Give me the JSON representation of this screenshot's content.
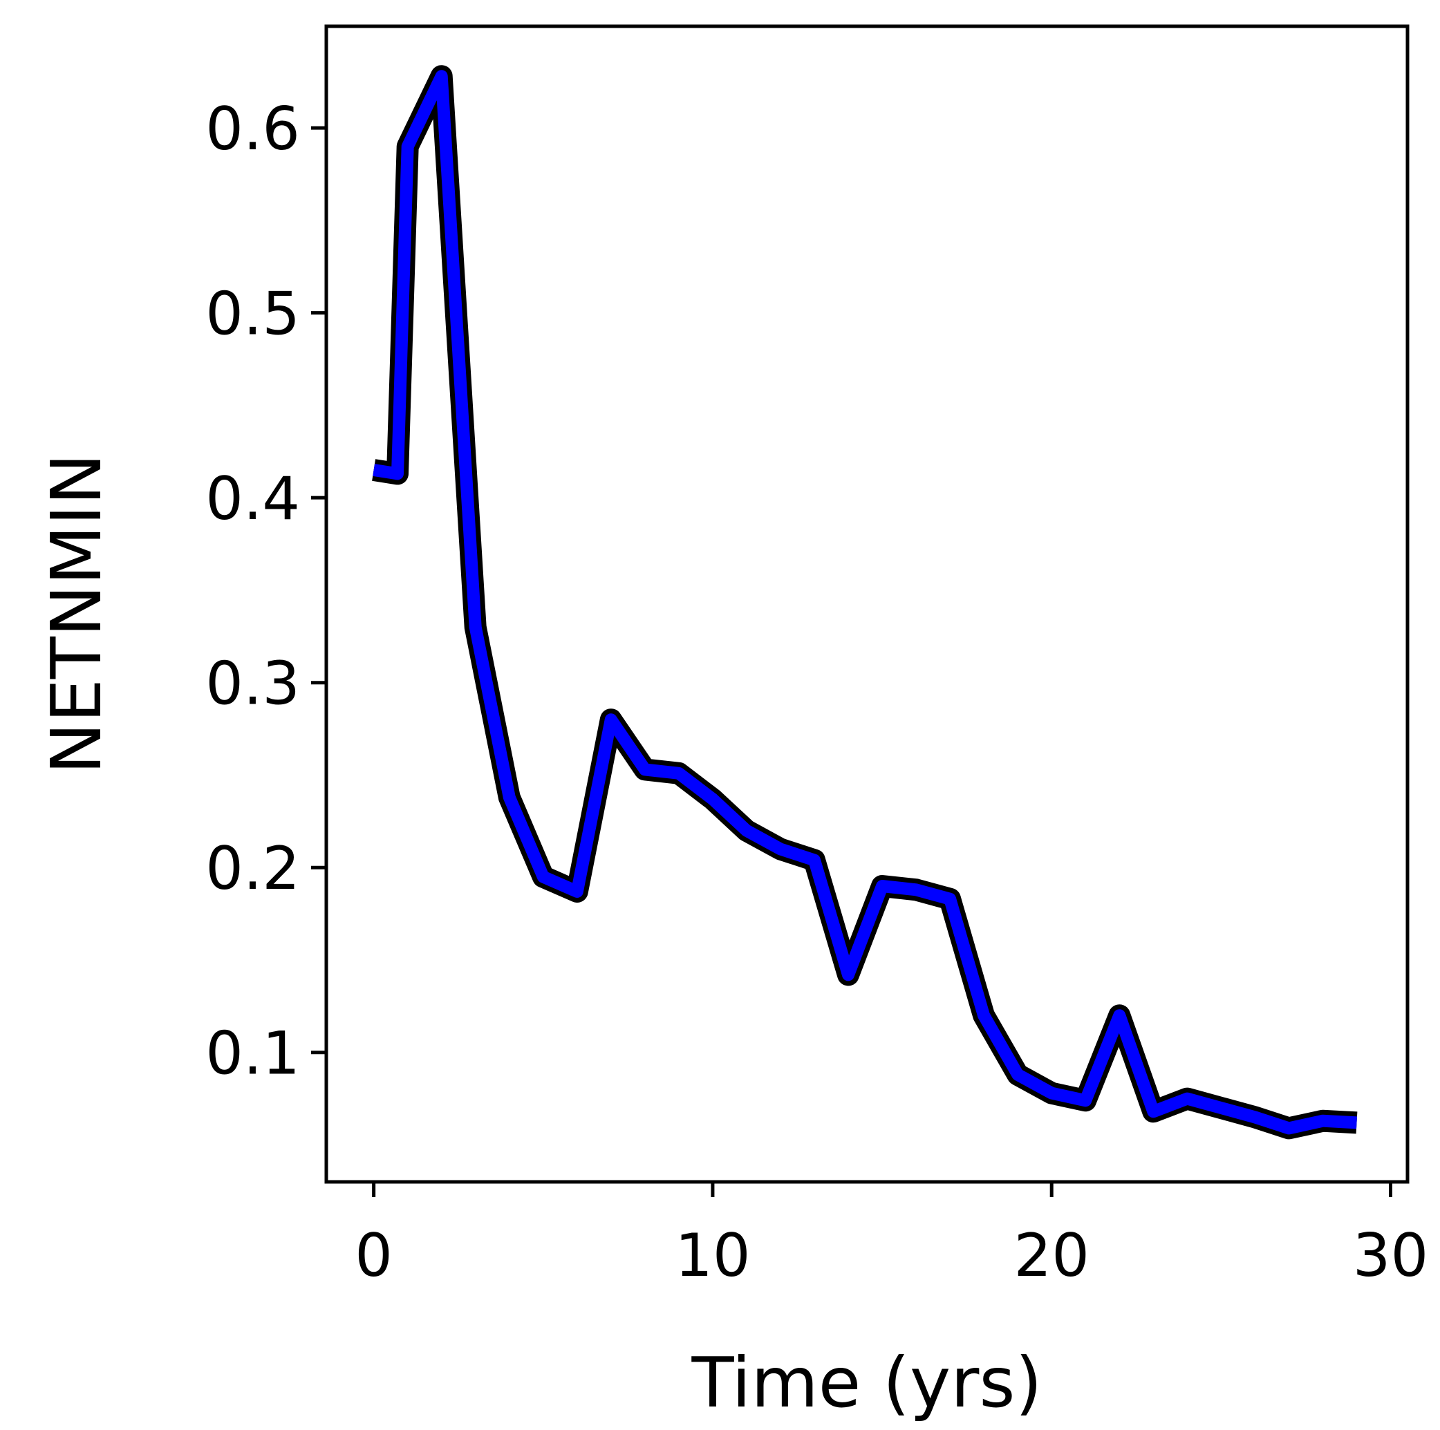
{
  "chart_data": {
    "type": "line",
    "title": "",
    "xlabel": "Time (yrs)",
    "ylabel": "NETNMIN",
    "xlim": [
      -1.4,
      30.5
    ],
    "ylim": [
      0.03,
      0.655
    ],
    "xticks": [
      0,
      10,
      20,
      30
    ],
    "xtick_labels": [
      "0",
      "10",
      "20",
      "30"
    ],
    "yticks": [
      0.1,
      0.2,
      0.3,
      0.4,
      0.5,
      0.6
    ],
    "ytick_labels": [
      "0.1",
      "0.2",
      "0.3",
      "0.4",
      "0.5",
      "0.6"
    ],
    "grid": false,
    "series": [
      {
        "color": "#0000ff",
        "edge_color": "#000000",
        "x": [
          0,
          0.7,
          1,
          2,
          3,
          4,
          5,
          6,
          7,
          8,
          9,
          10,
          11,
          12,
          13,
          14,
          15,
          16,
          17,
          18,
          19,
          20,
          21,
          22,
          23,
          24,
          25,
          26,
          27,
          28,
          29
        ],
        "y": [
          0.415,
          0.413,
          0.59,
          0.628,
          0.33,
          0.238,
          0.195,
          0.187,
          0.28,
          0.253,
          0.251,
          0.237,
          0.22,
          0.21,
          0.204,
          0.142,
          0.19,
          0.188,
          0.183,
          0.12,
          0.088,
          0.078,
          0.074,
          0.12,
          0.068,
          0.075,
          0.07,
          0.065,
          0.059,
          0.063,
          0.062
        ]
      }
    ]
  }
}
